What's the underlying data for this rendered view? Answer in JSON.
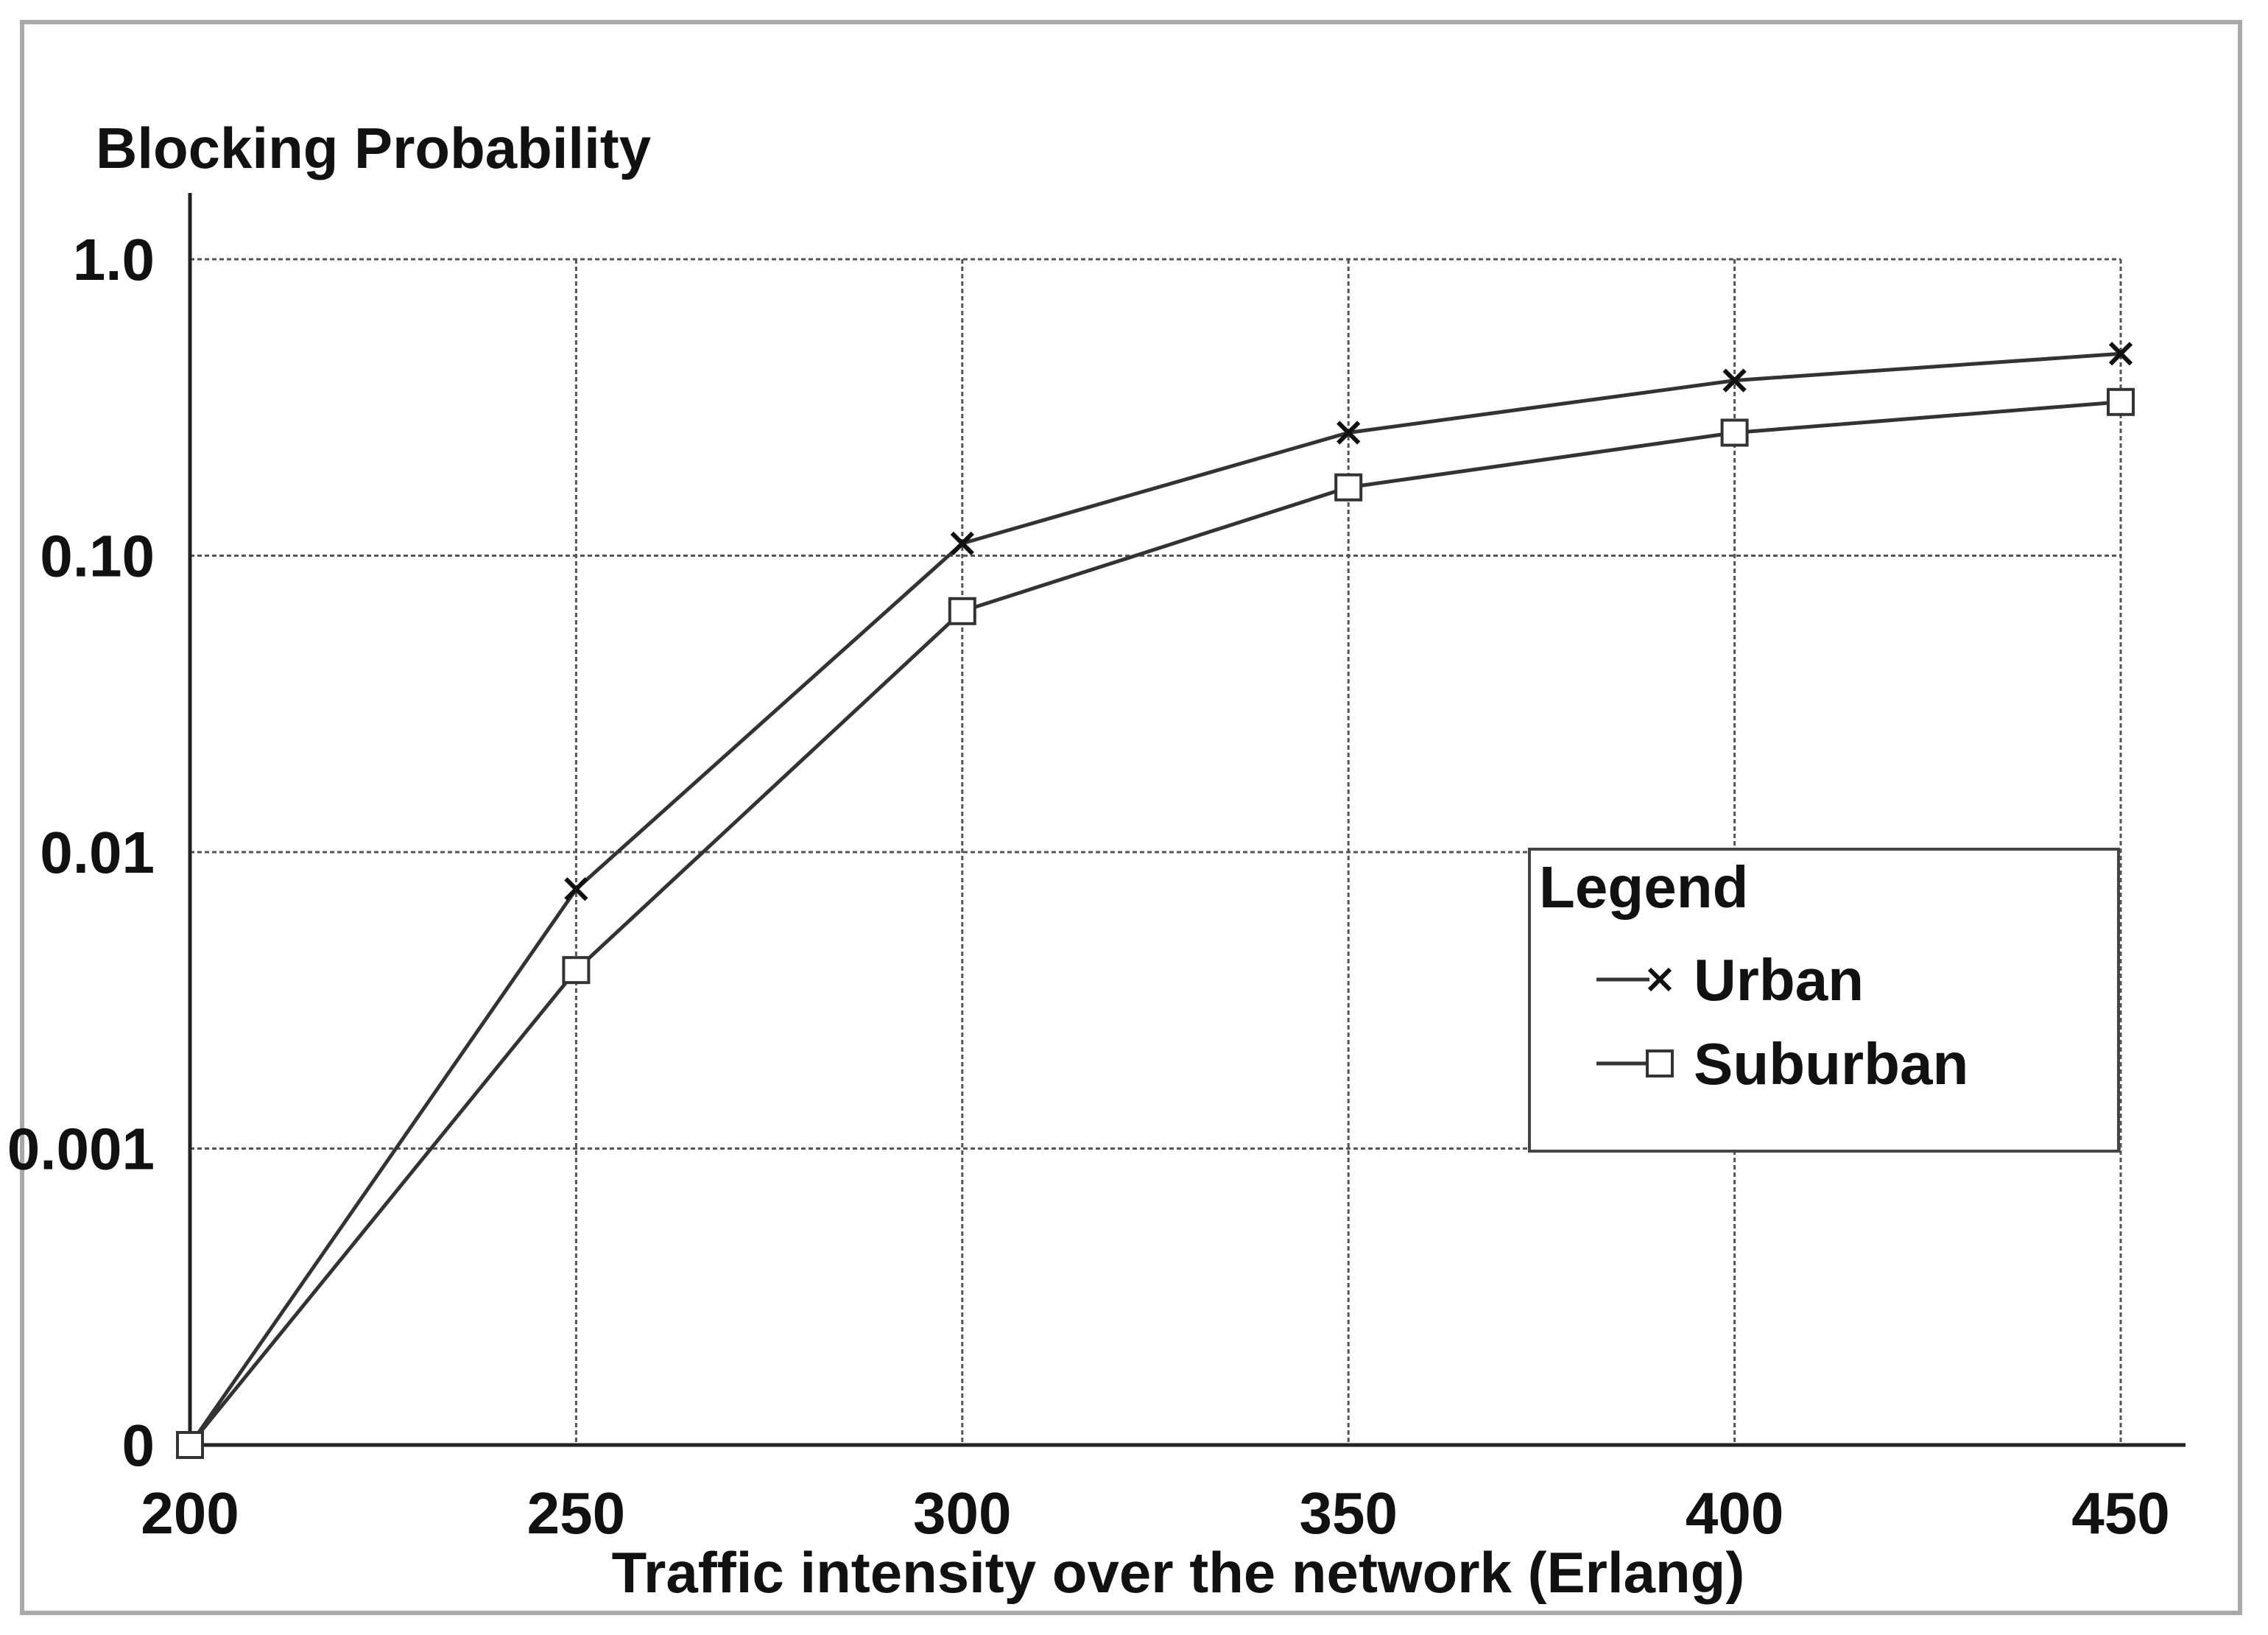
{
  "chart_data": {
    "type": "line",
    "title": "",
    "xlabel": "Traffic intensity over the network (Erlang)",
    "ylabel": "Blocking Probability",
    "x": [
      200,
      250,
      300,
      350,
      400,
      450
    ],
    "x_ticks": [
      "200",
      "250",
      "300",
      "350",
      "400",
      "450"
    ],
    "xlim": [
      200,
      450
    ],
    "y_scale": "log (0 at bottom)",
    "y_ticks": [
      "0",
      "0.001",
      "0.01",
      "0.10",
      "1.0"
    ],
    "ylim": [
      0,
      1.0
    ],
    "grid": true,
    "legend": {
      "title": "Legend",
      "placement": "center-right"
    },
    "series": [
      {
        "name": "Urban",
        "marker": "x",
        "values": [
          0,
          0.0075,
          0.11,
          0.26,
          0.39,
          0.48
        ]
      },
      {
        "name": "Suburban",
        "marker": "square",
        "values": [
          0,
          0.004,
          0.065,
          0.17,
          0.26,
          0.33
        ]
      }
    ],
    "colors": {
      "line": "#333333",
      "grid": "#555555",
      "frame": "#a0a0a0"
    }
  }
}
